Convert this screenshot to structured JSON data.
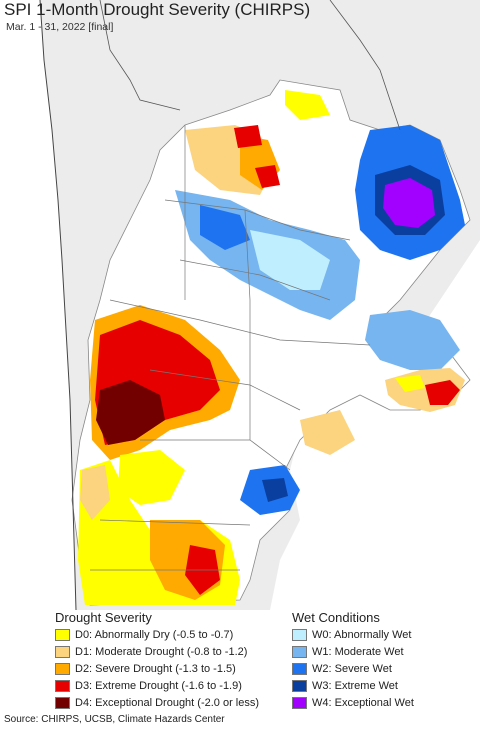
{
  "title": "SPI 1-Month Drought Severity (CHIRPS)",
  "subtitle": "Mar. 1 - 31, 2022 [final]",
  "legend": {
    "drought_heading": "Drought Severity",
    "wet_heading": "Wet Conditions",
    "drought": [
      {
        "label": "D0: Abnormally Dry (-0.5 to -0.7)",
        "color": "#ffff00"
      },
      {
        "label": "D1: Moderate Drought (-0.8 to -1.2)",
        "color": "#fcd37f"
      },
      {
        "label": "D2: Severe Drought (-1.3 to -1.5)",
        "color": "#ffaa00"
      },
      {
        "label": "D3: Extreme Drought (-1.6 to -1.9)",
        "color": "#e60000"
      },
      {
        "label": "D4: Exceptional Drought (-2.0 or less)",
        "color": "#730000"
      }
    ],
    "wet": [
      {
        "label": "W0: Abnormally Wet",
        "color": "#bfeffe"
      },
      {
        "label": "W1: Moderate Wet",
        "color": "#76b5f0"
      },
      {
        "label": "W2: Severe Wet",
        "color": "#1e74f0"
      },
      {
        "label": "W3: Extreme Wet",
        "color": "#0a3fa0"
      },
      {
        "label": "W4: Exceptional Wet",
        "color": "#a200ff"
      }
    ]
  },
  "source": "Source: CHIRPS, UCSB, Climate Hazards Center"
}
